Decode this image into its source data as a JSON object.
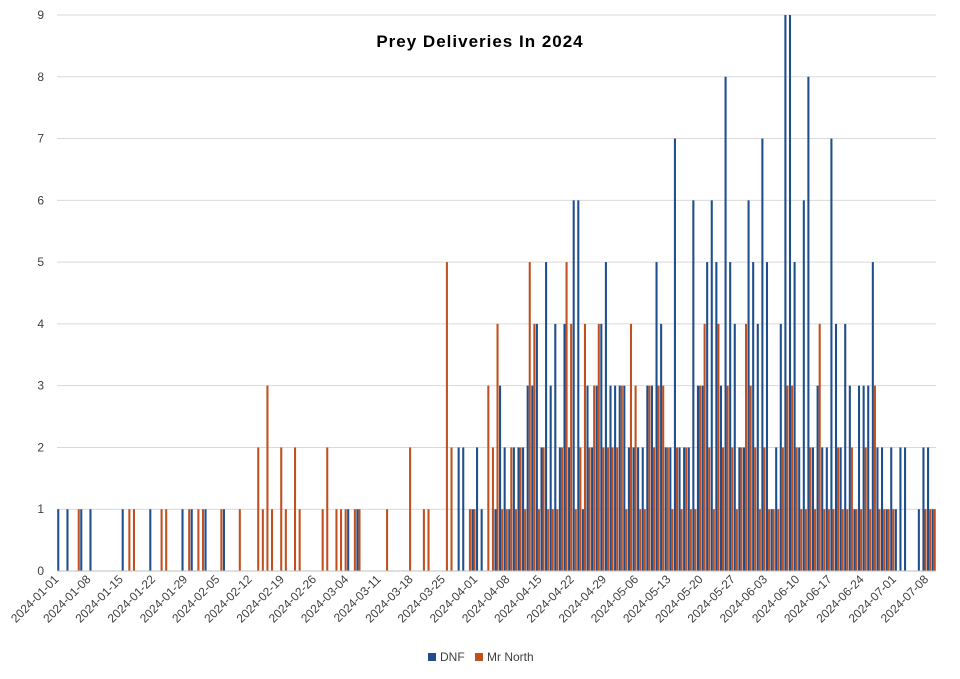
{
  "chart_data": {
    "type": "bar",
    "title": "Prey Deliveries In 2024",
    "xlabel": "",
    "ylabel": "",
    "ylim": [
      0,
      9
    ],
    "yticks": [
      "0",
      "1",
      "2",
      "3",
      "4",
      "5",
      "6",
      "7",
      "8",
      "9"
    ],
    "grid": "horizontal",
    "legend_position": "bottom",
    "x_tick_labels": [
      "2024-01-01",
      "2024-01-08",
      "2024-01-15",
      "2024-01-22",
      "2024-01-29",
      "2024-02-05",
      "2024-02-12",
      "2024-02-19",
      "2024-02-26",
      "2024-03-04",
      "2024-03-11",
      "2024-03-18",
      "2024-03-25",
      "2024-04-01",
      "2024-04-08",
      "2024-04-15",
      "2024-04-22",
      "2024-04-29",
      "2024-05-06",
      "2024-05-13",
      "2024-05-20",
      "2024-05-27",
      "2024-06-03",
      "2024-06-10",
      "2024-06-17",
      "2024-06-24",
      "2024-07-01",
      "2024-07-08"
    ],
    "x_range": [
      "2024-01-01",
      "2024-07-10"
    ],
    "series": [
      {
        "name": "DNF",
        "color": "#1f4e8c",
        "points": [
          [
            "2024-01-01",
            1
          ],
          [
            "2024-01-03",
            1
          ],
          [
            "2024-01-06",
            1
          ],
          [
            "2024-01-08",
            1
          ],
          [
            "2024-01-15",
            1
          ],
          [
            "2024-01-21",
            1
          ],
          [
            "2024-01-28",
            1
          ],
          [
            "2024-01-30",
            1
          ],
          [
            "2024-02-02",
            1
          ],
          [
            "2024-02-06",
            1
          ],
          [
            "2024-03-04",
            1
          ],
          [
            "2024-03-06",
            1
          ],
          [
            "2024-03-28",
            2
          ],
          [
            "2024-03-29",
            2
          ],
          [
            "2024-03-31",
            1
          ],
          [
            "2024-04-01",
            2
          ],
          [
            "2024-04-02",
            1
          ],
          [
            "2024-04-05",
            1
          ],
          [
            "2024-04-06",
            3
          ],
          [
            "2024-04-07",
            2
          ],
          [
            "2024-04-08",
            1
          ],
          [
            "2024-04-09",
            2
          ],
          [
            "2024-04-10",
            2
          ],
          [
            "2024-04-11",
            2
          ],
          [
            "2024-04-12",
            3
          ],
          [
            "2024-04-13",
            3
          ],
          [
            "2024-04-14",
            4
          ],
          [
            "2024-04-15",
            2
          ],
          [
            "2024-04-16",
            5
          ],
          [
            "2024-04-17",
            3
          ],
          [
            "2024-04-18",
            4
          ],
          [
            "2024-04-19",
            2
          ],
          [
            "2024-04-20",
            4
          ],
          [
            "2024-04-21",
            2
          ],
          [
            "2024-04-22",
            6
          ],
          [
            "2024-04-23",
            6
          ],
          [
            "2024-04-24",
            1
          ],
          [
            "2024-04-25",
            3
          ],
          [
            "2024-04-26",
            2
          ],
          [
            "2024-04-27",
            3
          ],
          [
            "2024-04-28",
            4
          ],
          [
            "2024-04-29",
            5
          ],
          [
            "2024-04-30",
            3
          ],
          [
            "2024-05-01",
            3
          ],
          [
            "2024-05-02",
            3
          ],
          [
            "2024-05-03",
            3
          ],
          [
            "2024-05-04",
            2
          ],
          [
            "2024-05-05",
            2
          ],
          [
            "2024-05-06",
            2
          ],
          [
            "2024-05-07",
            2
          ],
          [
            "2024-05-08",
            3
          ],
          [
            "2024-05-09",
            3
          ],
          [
            "2024-05-10",
            5
          ],
          [
            "2024-05-11",
            4
          ],
          [
            "2024-05-12",
            2
          ],
          [
            "2024-05-13",
            2
          ],
          [
            "2024-05-14",
            7
          ],
          [
            "2024-05-15",
            2
          ],
          [
            "2024-05-16",
            2
          ],
          [
            "2024-05-17",
            2
          ],
          [
            "2024-05-18",
            6
          ],
          [
            "2024-05-19",
            3
          ],
          [
            "2024-05-20",
            3
          ],
          [
            "2024-05-21",
            5
          ],
          [
            "2024-05-22",
            6
          ],
          [
            "2024-05-23",
            5
          ],
          [
            "2024-05-24",
            3
          ],
          [
            "2024-05-25",
            8
          ],
          [
            "2024-05-26",
            5
          ],
          [
            "2024-05-27",
            4
          ],
          [
            "2024-05-28",
            2
          ],
          [
            "2024-05-29",
            2
          ],
          [
            "2024-05-30",
            6
          ],
          [
            "2024-05-31",
            5
          ],
          [
            "2024-06-01",
            4
          ],
          [
            "2024-06-02",
            7
          ],
          [
            "2024-06-03",
            5
          ],
          [
            "2024-06-04",
            1
          ],
          [
            "2024-06-05",
            2
          ],
          [
            "2024-06-06",
            4
          ],
          [
            "2024-06-07",
            9
          ],
          [
            "2024-06-08",
            9
          ],
          [
            "2024-06-09",
            5
          ],
          [
            "2024-06-10",
            2
          ],
          [
            "2024-06-11",
            6
          ],
          [
            "2024-06-12",
            8
          ],
          [
            "2024-06-13",
            2
          ],
          [
            "2024-06-14",
            3
          ],
          [
            "2024-06-15",
            2
          ],
          [
            "2024-06-16",
            2
          ],
          [
            "2024-06-17",
            7
          ],
          [
            "2024-06-18",
            4
          ],
          [
            "2024-06-19",
            2
          ],
          [
            "2024-06-20",
            4
          ],
          [
            "2024-06-21",
            3
          ],
          [
            "2024-06-22",
            1
          ],
          [
            "2024-06-23",
            3
          ],
          [
            "2024-06-24",
            3
          ],
          [
            "2024-06-25",
            3
          ],
          [
            "2024-06-26",
            5
          ],
          [
            "2024-06-27",
            2
          ],
          [
            "2024-06-28",
            2
          ],
          [
            "2024-06-29",
            1
          ],
          [
            "2024-06-30",
            2
          ],
          [
            "2024-07-01",
            1
          ],
          [
            "2024-07-02",
            2
          ],
          [
            "2024-07-03",
            2
          ],
          [
            "2024-07-06",
            1
          ],
          [
            "2024-07-07",
            2
          ],
          [
            "2024-07-08",
            2
          ],
          [
            "2024-07-09",
            1
          ]
        ]
      },
      {
        "name": "Mr North",
        "color": "#c0501f",
        "points": [
          [
            "2024-01-05",
            1
          ],
          [
            "2024-01-16",
            1
          ],
          [
            "2024-01-17",
            1
          ],
          [
            "2024-01-23",
            1
          ],
          [
            "2024-01-24",
            1
          ],
          [
            "2024-01-29",
            1
          ],
          [
            "2024-01-31",
            1
          ],
          [
            "2024-02-01",
            1
          ],
          [
            "2024-02-05",
            1
          ],
          [
            "2024-02-09",
            1
          ],
          [
            "2024-02-13",
            2
          ],
          [
            "2024-02-14",
            1
          ],
          [
            "2024-02-15",
            3
          ],
          [
            "2024-02-16",
            1
          ],
          [
            "2024-02-18",
            2
          ],
          [
            "2024-02-19",
            1
          ],
          [
            "2024-02-21",
            2
          ],
          [
            "2024-02-22",
            1
          ],
          [
            "2024-02-27",
            1
          ],
          [
            "2024-02-28",
            2
          ],
          [
            "2024-03-01",
            1
          ],
          [
            "2024-03-02",
            1
          ],
          [
            "2024-03-03",
            1
          ],
          [
            "2024-03-05",
            1
          ],
          [
            "2024-03-06",
            1
          ],
          [
            "2024-03-12",
            1
          ],
          [
            "2024-03-17",
            2
          ],
          [
            "2024-03-20",
            1
          ],
          [
            "2024-03-21",
            1
          ],
          [
            "2024-03-25",
            5
          ],
          [
            "2024-03-26",
            2
          ],
          [
            "2024-03-30",
            1
          ],
          [
            "2024-03-31",
            1
          ],
          [
            "2024-04-03",
            3
          ],
          [
            "2024-04-04",
            2
          ],
          [
            "2024-04-05",
            4
          ],
          [
            "2024-04-06",
            1
          ],
          [
            "2024-04-07",
            1
          ],
          [
            "2024-04-08",
            2
          ],
          [
            "2024-04-09",
            1
          ],
          [
            "2024-04-10",
            2
          ],
          [
            "2024-04-11",
            1
          ],
          [
            "2024-04-12",
            5
          ],
          [
            "2024-04-13",
            4
          ],
          [
            "2024-04-14",
            1
          ],
          [
            "2024-04-15",
            2
          ],
          [
            "2024-04-16",
            1
          ],
          [
            "2024-04-17",
            1
          ],
          [
            "2024-04-18",
            1
          ],
          [
            "2024-04-19",
            2
          ],
          [
            "2024-04-20",
            5
          ],
          [
            "2024-04-21",
            4
          ],
          [
            "2024-04-22",
            1
          ],
          [
            "2024-04-23",
            2
          ],
          [
            "2024-04-24",
            4
          ],
          [
            "2024-04-25",
            2
          ],
          [
            "2024-04-26",
            3
          ],
          [
            "2024-04-27",
            4
          ],
          [
            "2024-04-28",
            2
          ],
          [
            "2024-04-29",
            2
          ],
          [
            "2024-04-30",
            2
          ],
          [
            "2024-05-01",
            2
          ],
          [
            "2024-05-02",
            3
          ],
          [
            "2024-05-03",
            1
          ],
          [
            "2024-05-04",
            4
          ],
          [
            "2024-05-05",
            3
          ],
          [
            "2024-05-06",
            1
          ],
          [
            "2024-05-07",
            1
          ],
          [
            "2024-05-08",
            3
          ],
          [
            "2024-05-09",
            2
          ],
          [
            "2024-05-10",
            3
          ],
          [
            "2024-05-11",
            3
          ],
          [
            "2024-05-12",
            2
          ],
          [
            "2024-05-13",
            1
          ],
          [
            "2024-05-14",
            2
          ],
          [
            "2024-05-15",
            1
          ],
          [
            "2024-05-16",
            2
          ],
          [
            "2024-05-17",
            1
          ],
          [
            "2024-05-18",
            1
          ],
          [
            "2024-05-19",
            3
          ],
          [
            "2024-05-20",
            4
          ],
          [
            "2024-05-21",
            2
          ],
          [
            "2024-05-22",
            1
          ],
          [
            "2024-05-23",
            4
          ],
          [
            "2024-05-24",
            2
          ],
          [
            "2024-05-25",
            3
          ],
          [
            "2024-05-26",
            2
          ],
          [
            "2024-05-27",
            1
          ],
          [
            "2024-05-28",
            2
          ],
          [
            "2024-05-29",
            4
          ],
          [
            "2024-05-30",
            3
          ],
          [
            "2024-05-31",
            2
          ],
          [
            "2024-06-01",
            1
          ],
          [
            "2024-06-02",
            2
          ],
          [
            "2024-06-03",
            1
          ],
          [
            "2024-06-04",
            1
          ],
          [
            "2024-06-05",
            1
          ],
          [
            "2024-06-06",
            2
          ],
          [
            "2024-06-07",
            3
          ],
          [
            "2024-06-08",
            3
          ],
          [
            "2024-06-09",
            2
          ],
          [
            "2024-06-10",
            1
          ],
          [
            "2024-06-11",
            1
          ],
          [
            "2024-06-12",
            2
          ],
          [
            "2024-06-13",
            1
          ],
          [
            "2024-06-14",
            4
          ],
          [
            "2024-06-15",
            1
          ],
          [
            "2024-06-16",
            1
          ],
          [
            "2024-06-17",
            1
          ],
          [
            "2024-06-18",
            2
          ],
          [
            "2024-06-19",
            1
          ],
          [
            "2024-06-20",
            1
          ],
          [
            "2024-06-21",
            2
          ],
          [
            "2024-06-22",
            1
          ],
          [
            "2024-06-23",
            1
          ],
          [
            "2024-06-24",
            2
          ],
          [
            "2024-06-25",
            1
          ],
          [
            "2024-06-26",
            3
          ],
          [
            "2024-06-27",
            1
          ],
          [
            "2024-06-28",
            1
          ],
          [
            "2024-06-29",
            1
          ],
          [
            "2024-06-30",
            1
          ],
          [
            "2024-07-07",
            1
          ],
          [
            "2024-07-08",
            1
          ],
          [
            "2024-07-09",
            1
          ]
        ]
      }
    ]
  }
}
